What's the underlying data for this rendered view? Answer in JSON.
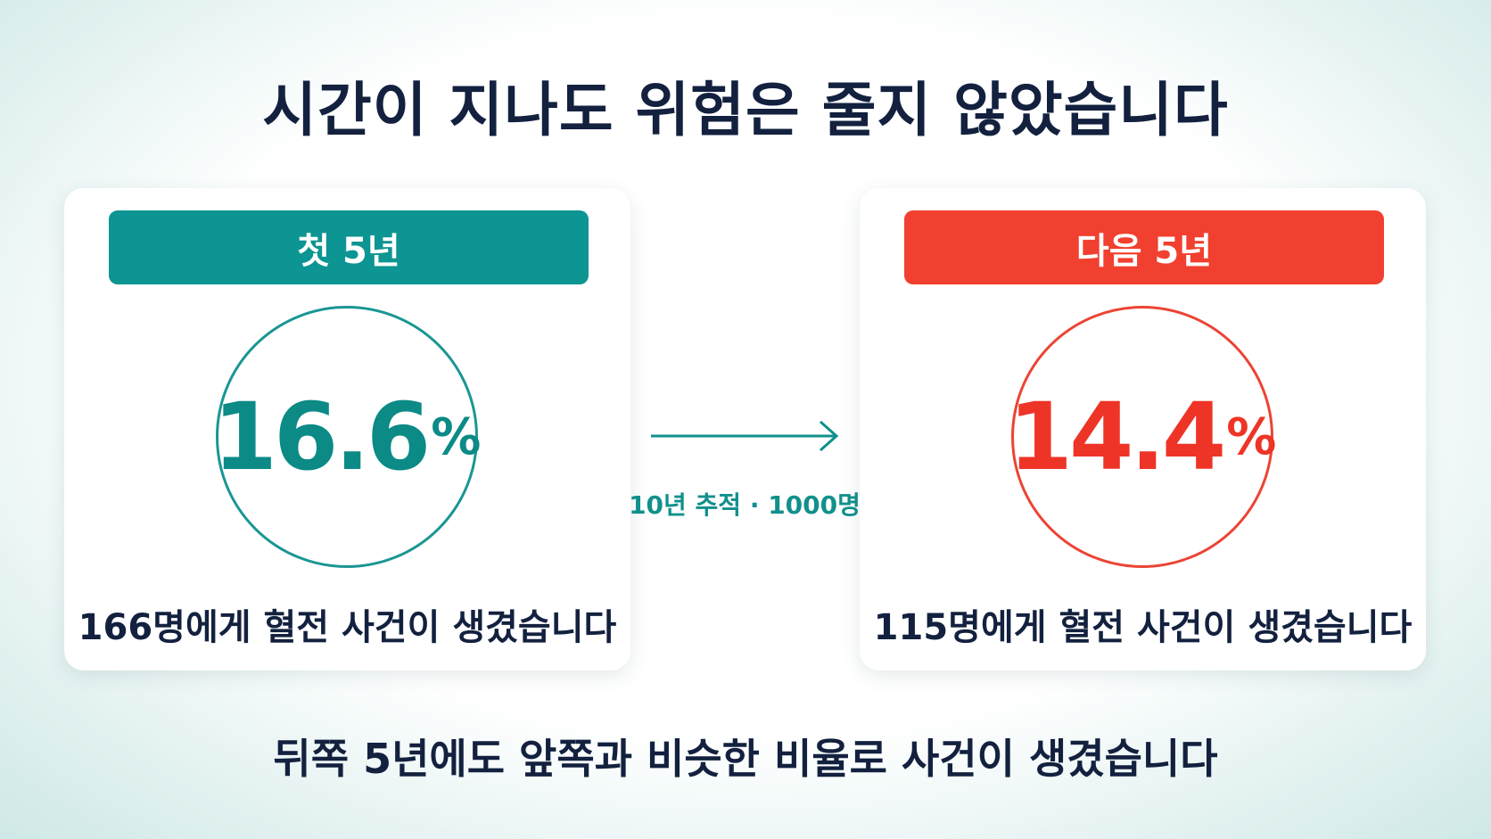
{
  "title": "시간이 지나도 위험은 줄지 않았습니다",
  "cards": [
    {
      "header": "첫 5년",
      "value": "16.6",
      "unit": "%",
      "description": "166명에게 혈전 사건이 생겼습니다"
    },
    {
      "header": "다음 5년",
      "value": "14.4",
      "unit": "%",
      "description": "115명에게 혈전 사건이 생겼습니다"
    }
  ],
  "arrow_label": "10년 추적 · 1000명",
  "footer": "뒤쪽 5년에도 앞쪽과 비슷한 비율로 사건이 생겼습니다"
}
